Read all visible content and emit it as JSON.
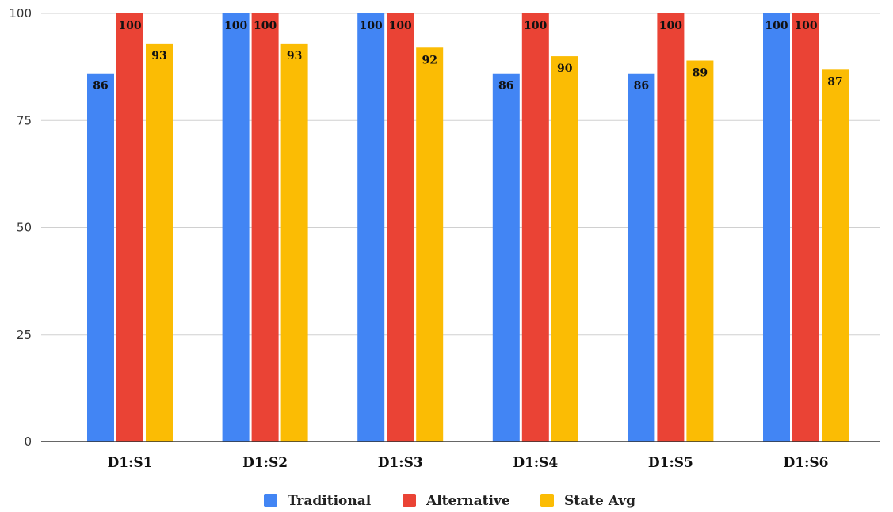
{
  "chart_data": {
    "type": "bar",
    "categories": [
      "D1:S1",
      "D1:S2",
      "D1:S3",
      "D1:S4",
      "D1:S5",
      "D1:S6"
    ],
    "series": [
      {
        "name": "Traditional",
        "values": [
          86,
          100,
          100,
          86,
          86,
          100
        ],
        "color": "#4285F4"
      },
      {
        "name": "Alternative",
        "values": [
          100,
          100,
          100,
          100,
          100,
          100
        ],
        "color": "#EA4335"
      },
      {
        "name": "State Avg",
        "values": [
          93,
          93,
          92,
          90,
          89,
          87
        ],
        "color": "#FBBC04"
      }
    ],
    "yticks": [
      "0",
      "25",
      "50",
      "75",
      "100"
    ],
    "ylim": [
      0,
      100
    ],
    "grid": true,
    "legend_position": "bottom-center",
    "data_labels": true
  }
}
